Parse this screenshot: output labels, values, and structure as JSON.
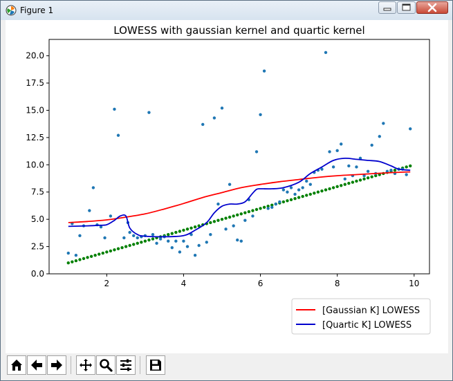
{
  "window": {
    "title": "Figure 1",
    "minimize_icon": "minimize-icon",
    "maximize_icon": "maximize-icon",
    "close_icon": "close-icon"
  },
  "toolbar": {
    "buttons": [
      {
        "name": "home-button",
        "icon": "home-icon"
      },
      {
        "name": "back-button",
        "icon": "arrow-left-icon"
      },
      {
        "name": "forward-button",
        "icon": "arrow-right-icon"
      },
      {
        "name": "pan-button",
        "icon": "move-icon"
      },
      {
        "name": "zoom-button",
        "icon": "magnifier-icon"
      },
      {
        "name": "configure-subplots-button",
        "icon": "sliders-icon"
      },
      {
        "name": "save-button",
        "icon": "floppy-disk-icon"
      }
    ]
  },
  "chart_data": {
    "type": "scatter",
    "title": "LOWESS with gaussian kernel and quartic kernel",
    "xlabel": "",
    "ylabel": "",
    "xlim": [
      0.5,
      10.4
    ],
    "ylim": [
      0,
      21.5
    ],
    "x_ticks": [
      2,
      4,
      6,
      8,
      10
    ],
    "y_ticks": [
      0.0,
      2.5,
      5.0,
      7.5,
      10.0,
      12.5,
      15.0,
      17.5,
      20.0
    ],
    "x_tick_labels": [
      "2",
      "4",
      "6",
      "8",
      "10"
    ],
    "y_tick_labels": [
      "0.0",
      "2.5",
      "5.0",
      "7.5",
      "10.0",
      "12.5",
      "15.0",
      "17.5",
      "20.0"
    ],
    "grid": false,
    "legend_position": "lower-right",
    "colors": {
      "scatter": "#1f77b4",
      "trend": "#008000",
      "gaussian": "#ff0000",
      "quartic": "#0000cd"
    },
    "series": [
      {
        "name": "",
        "kind": "scatter",
        "color": "#1f77b4",
        "x": [
          1.0,
          1.1,
          1.3,
          1.2,
          1.4,
          1.55,
          1.65,
          1.75,
          1.85,
          1.95,
          2.1,
          2.2,
          2.3,
          2.45,
          2.55,
          2.6,
          2.7,
          2.8,
          2.9,
          3.0,
          3.1,
          3.2,
          3.3,
          3.4,
          3.5,
          3.6,
          3.7,
          3.8,
          3.9,
          4.0,
          4.1,
          4.2,
          4.3,
          4.4,
          4.5,
          4.6,
          4.7,
          4.8,
          4.9,
          5.0,
          5.1,
          5.2,
          5.3,
          5.4,
          5.5,
          5.6,
          5.7,
          5.8,
          5.9,
          6.0,
          6.1,
          6.2,
          6.3,
          6.4,
          6.5,
          6.6,
          6.7,
          6.8,
          6.9,
          7.0,
          7.1,
          7.2,
          7.3,
          7.4,
          7.5,
          7.6,
          7.7,
          7.8,
          7.9,
          8.0,
          8.1,
          8.2,
          8.3,
          8.4,
          8.5,
          8.6,
          8.7,
          8.8,
          8.9,
          9.0,
          9.1,
          9.2,
          9.3,
          9.4,
          9.5,
          9.6,
          9.7,
          9.8,
          9.9
        ],
        "y": [
          1.9,
          4.6,
          3.5,
          1.7,
          4.4,
          5.8,
          7.9,
          4.5,
          4.3,
          3.3,
          5.3,
          15.1,
          12.7,
          3.3,
          4.7,
          3.8,
          3.5,
          3.3,
          3.4,
          3.5,
          14.8,
          3.6,
          2.8,
          3.2,
          3.4,
          3.0,
          2.4,
          3.0,
          2.0,
          3.0,
          2.5,
          3.6,
          1.7,
          2.6,
          13.7,
          2.9,
          3.6,
          14.3,
          6.4,
          15.2,
          4.1,
          8.2,
          4.4,
          3.1,
          3.0,
          4.9,
          6.8,
          5.3,
          11.2,
          14.6,
          18.6,
          6.0,
          6.1,
          6.4,
          6.6,
          7.7,
          7.5,
          7.9,
          7.3,
          7.7,
          7.9,
          8.5,
          8.2,
          9.3,
          9.5,
          9.6,
          20.3,
          11.2,
          9.8,
          11.3,
          11.9,
          8.7,
          9.9,
          9.0,
          9.8,
          10.6,
          9.0,
          9.4,
          11.8,
          9.2,
          12.6,
          13.8,
          9.4,
          9.5,
          9.2,
          9.6,
          9.6,
          9.1,
          13.3
        ]
      },
      {
        "name": "",
        "kind": "scatter",
        "color": "#008000",
        "x_start": 1.0,
        "x_end": 9.9,
        "count": 90,
        "y_start": 1.0,
        "y_end": 9.9
      },
      {
        "name": "[Gaussian K] LOWESS",
        "kind": "line",
        "color": "#ff0000",
        "x": [
          1.0,
          1.5,
          2.0,
          2.5,
          3.0,
          3.5,
          4.0,
          4.5,
          5.0,
          5.5,
          6.0,
          6.5,
          7.0,
          7.5,
          8.0,
          8.5,
          9.0,
          9.5,
          9.9
        ],
        "y": [
          4.7,
          4.8,
          4.95,
          5.2,
          5.5,
          5.95,
          6.45,
          7.0,
          7.45,
          7.9,
          8.2,
          8.45,
          8.65,
          8.85,
          9.0,
          9.1,
          9.2,
          9.3,
          9.35
        ]
      },
      {
        "name": "[Quartic K] LOWESS",
        "kind": "line",
        "color": "#0000cd",
        "x": [
          1.0,
          1.5,
          1.8,
          2.0,
          2.2,
          2.35,
          2.5,
          2.6,
          2.8,
          3.0,
          3.5,
          4.0,
          4.3,
          4.6,
          4.8,
          5.0,
          5.2,
          5.4,
          5.6,
          5.8,
          5.9,
          6.0,
          6.3,
          6.6,
          7.0,
          7.3,
          7.6,
          7.9,
          8.2,
          8.5,
          8.8,
          9.1,
          9.4,
          9.6,
          9.9
        ],
        "y": [
          4.35,
          4.4,
          4.45,
          4.5,
          4.9,
          5.3,
          5.3,
          4.2,
          3.6,
          3.45,
          3.4,
          3.5,
          4.0,
          4.7,
          5.6,
          6.2,
          6.4,
          6.4,
          6.6,
          7.4,
          7.75,
          7.8,
          7.8,
          7.9,
          8.4,
          9.2,
          9.8,
          10.4,
          10.6,
          10.5,
          10.4,
          10.3,
          9.9,
          9.6,
          9.5
        ]
      }
    ]
  }
}
